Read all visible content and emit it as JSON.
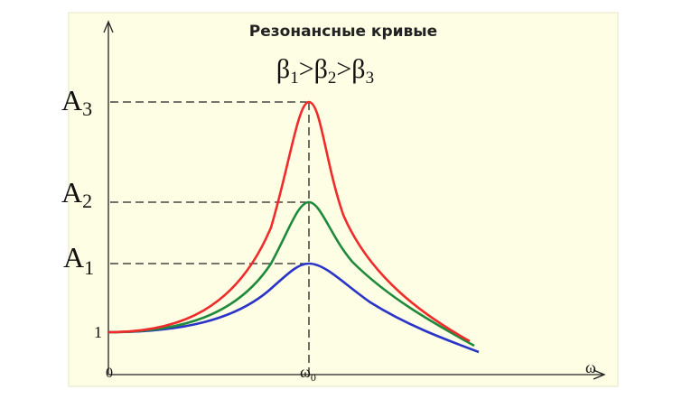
{
  "title": "Резонансные кривые",
  "relation": {
    "terms": [
      {
        "main": "β",
        "sub": "1"
      },
      {
        "main": "β",
        "sub": "2"
      },
      {
        "main": "β",
        "sub": "3"
      }
    ],
    "operator": ">"
  },
  "y_labels": [
    {
      "main": "A",
      "sub": "3"
    },
    {
      "main": "A",
      "sub": "2"
    },
    {
      "main": "A",
      "sub": "1"
    }
  ],
  "y_unit_label": "1",
  "origin_label": "0",
  "resonance_label": {
    "main": "ω",
    "sub": "0"
  },
  "x_axis_label": "ω"
}
